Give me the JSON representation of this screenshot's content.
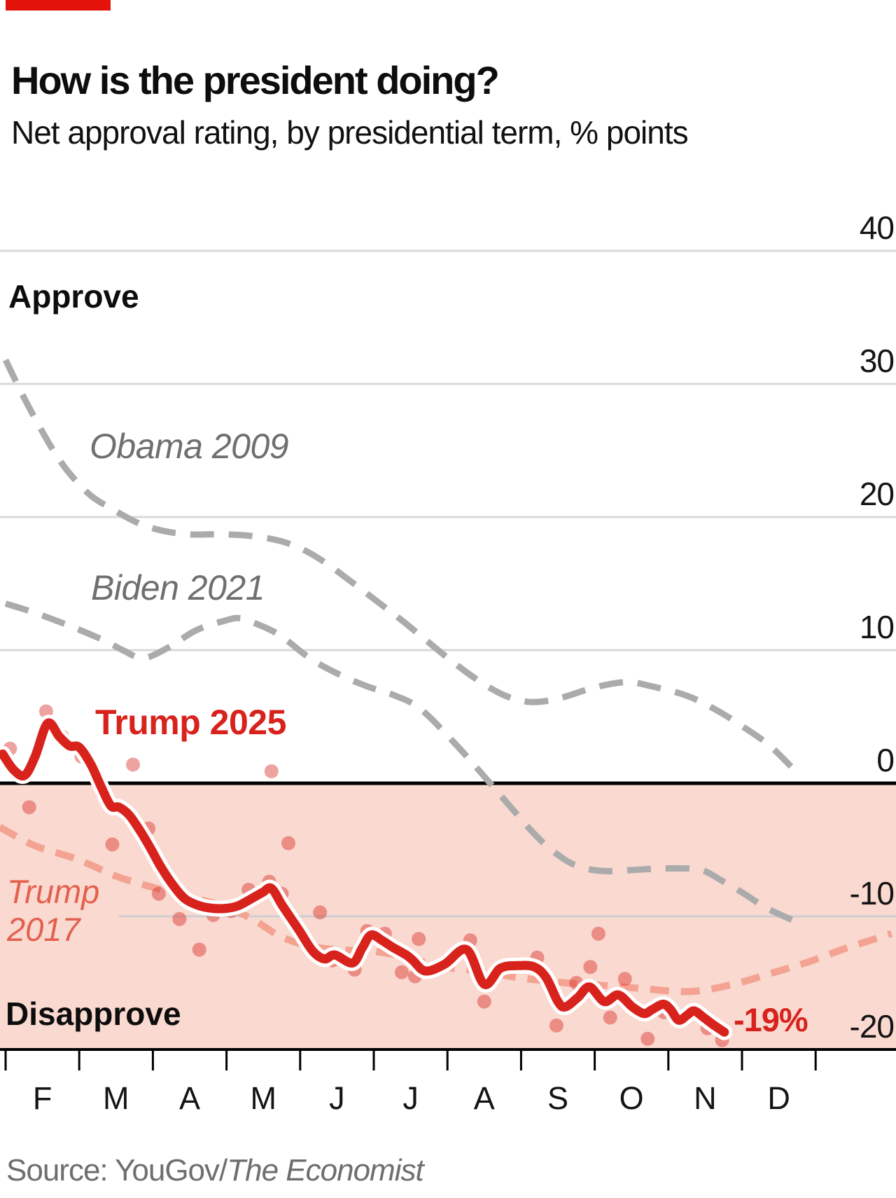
{
  "header": {
    "title": "How is the president doing?",
    "subtitle": "Net approval rating, by presidential term, % points"
  },
  "annotations": {
    "approve": "Approve",
    "disapprove": "Disapprove",
    "end_label": "-19%"
  },
  "series_labels": {
    "obama": "Obama 2009",
    "biden": "Biden 2021",
    "trump2025": "Trump 2025",
    "trump2017_line1": "Trump",
    "trump2017_line2": "2017"
  },
  "source": {
    "prefix": "Source: YouGov/",
    "publication": "The Economist"
  },
  "colors": {
    "brand_red": "#e3120b",
    "line_red": "#d8231d",
    "dot_red": "#d8231d",
    "dot_opacity": 0.42,
    "salmon_line": "#f4a392",
    "salmon_label": "#e4604e",
    "gray_line": "#ababab",
    "gridline": "#d8d8d8",
    "gridline_neg10": "#cfcfcf",
    "band_pink": "#f9d9d0",
    "axis_black": "#000000",
    "text_gray": "#6e6e6e"
  },
  "chart_data": {
    "type": "line",
    "title": "How is the president doing?",
    "subtitle": "Net approval rating, by presidential term, % points",
    "x_axis": {
      "unit": "months of first year in office (Feb-Dec)",
      "month_labels": [
        "F",
        "M",
        "A",
        "M",
        "J",
        "J",
        "A",
        "S",
        "O",
        "N",
        "D"
      ]
    },
    "y_axis": {
      "unit": "% points net approval",
      "tick_values": [
        40,
        30,
        20,
        10,
        0,
        -10,
        -20
      ],
      "tick_labels": [
        "40",
        "30",
        "20",
        "10",
        "0",
        "-10",
        "-20"
      ],
      "range": [
        -20,
        40
      ]
    },
    "zones": {
      "above_zero": "Approve",
      "below_zero": "Disapprove"
    },
    "legend_position": "inline-labels",
    "grid": true,
    "series": [
      {
        "key": "obama2009",
        "name": "Obama 2009",
        "style": "dashed-gray",
        "points": [
          [
            0,
            31.8
          ],
          [
            0.21,
            29.4
          ],
          [
            0.43,
            27.1
          ],
          [
            0.66,
            24.9
          ],
          [
            0.88,
            23.2
          ],
          [
            1.16,
            21.6
          ],
          [
            1.45,
            20.6
          ],
          [
            1.78,
            19.6
          ],
          [
            2.11,
            19.0
          ],
          [
            2.49,
            18.7
          ],
          [
            2.87,
            18.7
          ],
          [
            3.3,
            18.6
          ],
          [
            3.73,
            18.2
          ],
          [
            4.06,
            17.5
          ],
          [
            4.36,
            16.5
          ],
          [
            4.68,
            15.2
          ],
          [
            5.06,
            13.6
          ],
          [
            5.39,
            12.2
          ],
          [
            5.72,
            10.7
          ],
          [
            6.1,
            9.0
          ],
          [
            6.48,
            7.5
          ],
          [
            6.82,
            6.5
          ],
          [
            7.15,
            6.1
          ],
          [
            7.53,
            6.4
          ],
          [
            8.0,
            7.2
          ],
          [
            8.43,
            7.6
          ],
          [
            8.76,
            7.3
          ],
          [
            9.24,
            6.6
          ],
          [
            9.62,
            5.6
          ],
          [
            10.0,
            4.3
          ],
          [
            10.38,
            2.8
          ],
          [
            10.73,
            0.9
          ]
        ]
      },
      {
        "key": "biden2021",
        "name": "Biden 2021",
        "style": "dashed-gray",
        "points": [
          [
            0,
            13.5
          ],
          [
            0.4,
            12.8
          ],
          [
            0.88,
            11.8
          ],
          [
            1.35,
            10.7
          ],
          [
            1.59,
            10.0
          ],
          [
            1.87,
            9.4
          ],
          [
            2.21,
            10.2
          ],
          [
            2.59,
            11.5
          ],
          [
            2.97,
            12.2
          ],
          [
            3.18,
            12.4
          ],
          [
            3.44,
            11.9
          ],
          [
            3.73,
            11.1
          ],
          [
            4.13,
            9.4
          ],
          [
            4.52,
            8.2
          ],
          [
            4.9,
            7.3
          ],
          [
            5.28,
            6.6
          ],
          [
            5.63,
            5.6
          ],
          [
            6.1,
            3.0
          ],
          [
            6.58,
            0.0
          ],
          [
            7.18,
            -3.8
          ],
          [
            7.53,
            -5.5
          ],
          [
            7.81,
            -6.3
          ],
          [
            8.15,
            -6.6
          ],
          [
            8.57,
            -6.5
          ],
          [
            8.95,
            -6.4
          ],
          [
            9.43,
            -6.5
          ],
          [
            9.72,
            -7.3
          ],
          [
            10.0,
            -8.2
          ],
          [
            10.28,
            -9.2
          ],
          [
            10.57,
            -10.0
          ],
          [
            10.84,
            -10.6
          ]
        ]
      },
      {
        "key": "trump2017",
        "name": "Trump 2017",
        "style": "dashed-salmon",
        "points": [
          [
            -0.08,
            -3.3
          ],
          [
            0.4,
            -4.7
          ],
          [
            0.97,
            -5.7
          ],
          [
            1.51,
            -7.0
          ],
          [
            1.99,
            -7.8
          ],
          [
            2.46,
            -8.5
          ],
          [
            2.94,
            -9.2
          ],
          [
            3.35,
            -10.2
          ],
          [
            3.73,
            -11.5
          ],
          [
            4.11,
            -12.2
          ],
          [
            4.49,
            -12.5
          ],
          [
            4.96,
            -12.6
          ],
          [
            5.39,
            -13.0
          ],
          [
            5.94,
            -13.8
          ],
          [
            6.44,
            -14.1
          ],
          [
            6.96,
            -14.6
          ],
          [
            7.62,
            -15.0
          ],
          [
            8.15,
            -15.2
          ],
          [
            8.6,
            -15.4
          ],
          [
            9.29,
            -15.65
          ],
          [
            9.88,
            -15.1
          ],
          [
            10.38,
            -14.3
          ],
          [
            10.86,
            -13.5
          ],
          [
            11.41,
            -12.4
          ],
          [
            12.03,
            -11.3
          ]
        ]
      },
      {
        "key": "trump2025",
        "name": "Trump 2025",
        "style": "solid-red-white-outline",
        "points": [
          [
            -0.04,
            2.2
          ],
          [
            0.11,
            1.0
          ],
          [
            0.26,
            0.6
          ],
          [
            0.4,
            2.0
          ],
          [
            0.57,
            4.5
          ],
          [
            0.73,
            3.5
          ],
          [
            0.87,
            2.8
          ],
          [
            1.0,
            2.7
          ],
          [
            1.16,
            1.4
          ],
          [
            1.3,
            -0.3
          ],
          [
            1.43,
            -1.7
          ],
          [
            1.54,
            -1.8
          ],
          [
            1.68,
            -2.4
          ],
          [
            1.83,
            -3.6
          ],
          [
            1.97,
            -4.9
          ],
          [
            2.11,
            -6.3
          ],
          [
            2.28,
            -7.7
          ],
          [
            2.44,
            -8.7
          ],
          [
            2.63,
            -9.2
          ],
          [
            2.82,
            -9.4
          ],
          [
            2.99,
            -9.4
          ],
          [
            3.16,
            -9.2
          ],
          [
            3.33,
            -8.7
          ],
          [
            3.49,
            -8.2
          ],
          [
            3.61,
            -7.9
          ],
          [
            3.76,
            -9.2
          ],
          [
            3.98,
            -11.0
          ],
          [
            4.17,
            -12.6
          ],
          [
            4.33,
            -13.2
          ],
          [
            4.47,
            -12.9
          ],
          [
            4.71,
            -13.5
          ],
          [
            4.84,
            -12.4
          ],
          [
            4.96,
            -11.4
          ],
          [
            5.11,
            -11.8
          ],
          [
            5.25,
            -12.3
          ],
          [
            5.44,
            -12.9
          ],
          [
            5.53,
            -13.3
          ],
          [
            5.7,
            -14.1
          ],
          [
            5.96,
            -13.6
          ],
          [
            6.26,
            -12.5
          ],
          [
            6.5,
            -15.1
          ],
          [
            6.72,
            -13.9
          ],
          [
            6.96,
            -13.7
          ],
          [
            7.18,
            -13.8
          ],
          [
            7.34,
            -14.6
          ],
          [
            7.5,
            -16.4
          ],
          [
            7.6,
            -16.8
          ],
          [
            7.77,
            -16.1
          ],
          [
            7.93,
            -15.3
          ],
          [
            8.13,
            -16.4
          ],
          [
            8.32,
            -15.9
          ],
          [
            8.51,
            -16.8
          ],
          [
            8.67,
            -17.3
          ],
          [
            8.78,
            -17.0
          ],
          [
            8.93,
            -16.6
          ],
          [
            9.03,
            -17.0
          ],
          [
            9.14,
            -17.8
          ],
          [
            9.26,
            -17.4
          ],
          [
            9.35,
            -17.1
          ],
          [
            9.48,
            -17.6
          ],
          [
            9.6,
            -18.1
          ],
          [
            9.76,
            -18.7
          ]
        ]
      }
    ],
    "scatter": {
      "name": "Trump 2025 weekly poll results",
      "points": [
        [
          0.06,
          2.6
        ],
        [
          0.32,
          -1.8
        ],
        [
          0.55,
          5.4
        ],
        [
          0.77,
          3.5
        ],
        [
          1.03,
          2.0
        ],
        [
          1.26,
          0.3
        ],
        [
          1.45,
          -4.6
        ],
        [
          1.73,
          1.4
        ],
        [
          1.94,
          -3.4
        ],
        [
          2.08,
          -8.3
        ],
        [
          2.36,
          -10.2
        ],
        [
          2.63,
          -12.5
        ],
        [
          2.82,
          -9.9
        ],
        [
          3.06,
          -9.6
        ],
        [
          3.3,
          -8.0
        ],
        [
          3.58,
          -7.4
        ],
        [
          3.61,
          0.9
        ],
        [
          3.75,
          -8.3
        ],
        [
          3.84,
          -4.5
        ],
        [
          4.27,
          -9.7
        ],
        [
          4.44,
          -13.3
        ],
        [
          4.74,
          -14.0
        ],
        [
          4.91,
          -11.1
        ],
        [
          5.15,
          -11.3
        ],
        [
          5.38,
          -14.2
        ],
        [
          5.56,
          -14.5
        ],
        [
          5.61,
          -11.7
        ],
        [
          6.31,
          -11.8
        ],
        [
          6.5,
          -16.4
        ],
        [
          6.96,
          -13.6
        ],
        [
          7.22,
          -13.1
        ],
        [
          7.48,
          -18.2
        ],
        [
          7.75,
          -15.0
        ],
        [
          7.94,
          -13.8
        ],
        [
          8.05,
          -11.3
        ],
        [
          8.21,
          -17.6
        ],
        [
          8.41,
          -14.7
        ],
        [
          8.72,
          -19.2
        ],
        [
          8.94,
          -17.2
        ],
        [
          9.21,
          -17.5
        ],
        [
          9.53,
          -18.4
        ],
        [
          9.73,
          -19.3
        ]
      ]
    },
    "end_annotation": {
      "series": "Trump 2025",
      "label": "-19%",
      "value": -19
    }
  }
}
